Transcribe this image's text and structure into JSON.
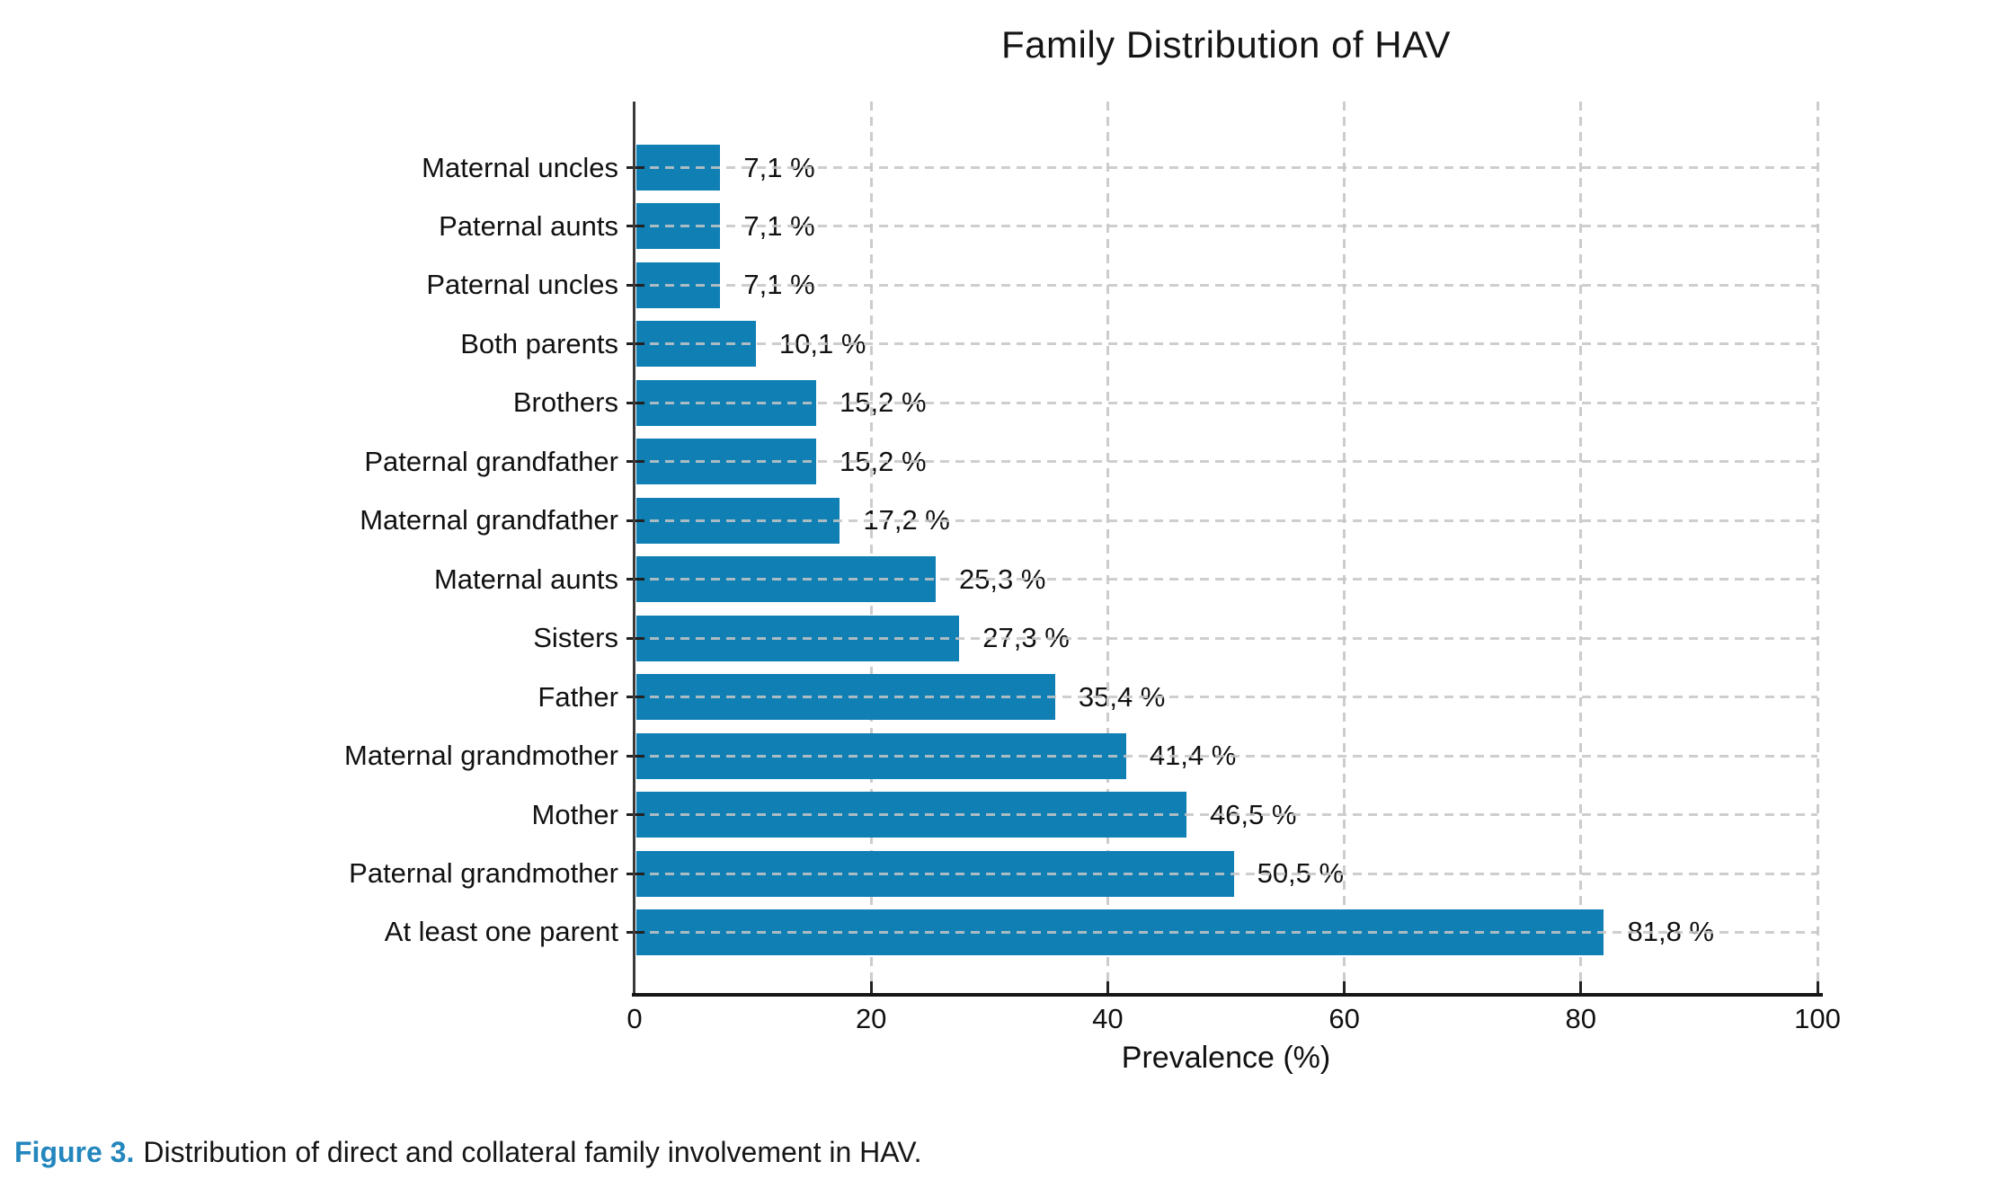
{
  "chart_data": {
    "type": "bar",
    "orientation": "horizontal",
    "title": "Family Distribution of HAV",
    "xlabel": "Prevalence (%)",
    "xlim": [
      0,
      100
    ],
    "x_ticks": [
      "0",
      "20",
      "40",
      "60",
      "80",
      "100"
    ],
    "grid": "dashed, both axes",
    "legend": "none",
    "bar_color": "#0f7fb4",
    "categories": [
      "Maternal uncles",
      "Paternal aunts",
      "Paternal uncles",
      "Both parents",
      "Brothers",
      "Paternal grandfather",
      "Maternal grandfather",
      "Maternal aunts",
      "Sisters",
      "Father",
      "Maternal grandmother",
      "Mother",
      "Paternal grandmother",
      "At least one parent"
    ],
    "values": [
      7.1,
      7.1,
      7.1,
      10.1,
      15.2,
      15.2,
      17.2,
      25.3,
      27.3,
      35.4,
      41.4,
      46.5,
      50.5,
      81.8
    ],
    "value_labels": [
      "7,1 %",
      "7,1 %",
      "7,1 %",
      "10,1 %",
      "15,2 %",
      "15,2 %",
      "17,2 %",
      "25,3 %",
      "27,3 %",
      "35,4 %",
      "41,4 %",
      "46,5 %",
      "50,5 %",
      "81,8 %"
    ]
  },
  "caption": {
    "label": "Figure 3.",
    "text": "Distribution of direct and collateral family involvement in HAV.",
    "label_color": "#2386bd"
  }
}
